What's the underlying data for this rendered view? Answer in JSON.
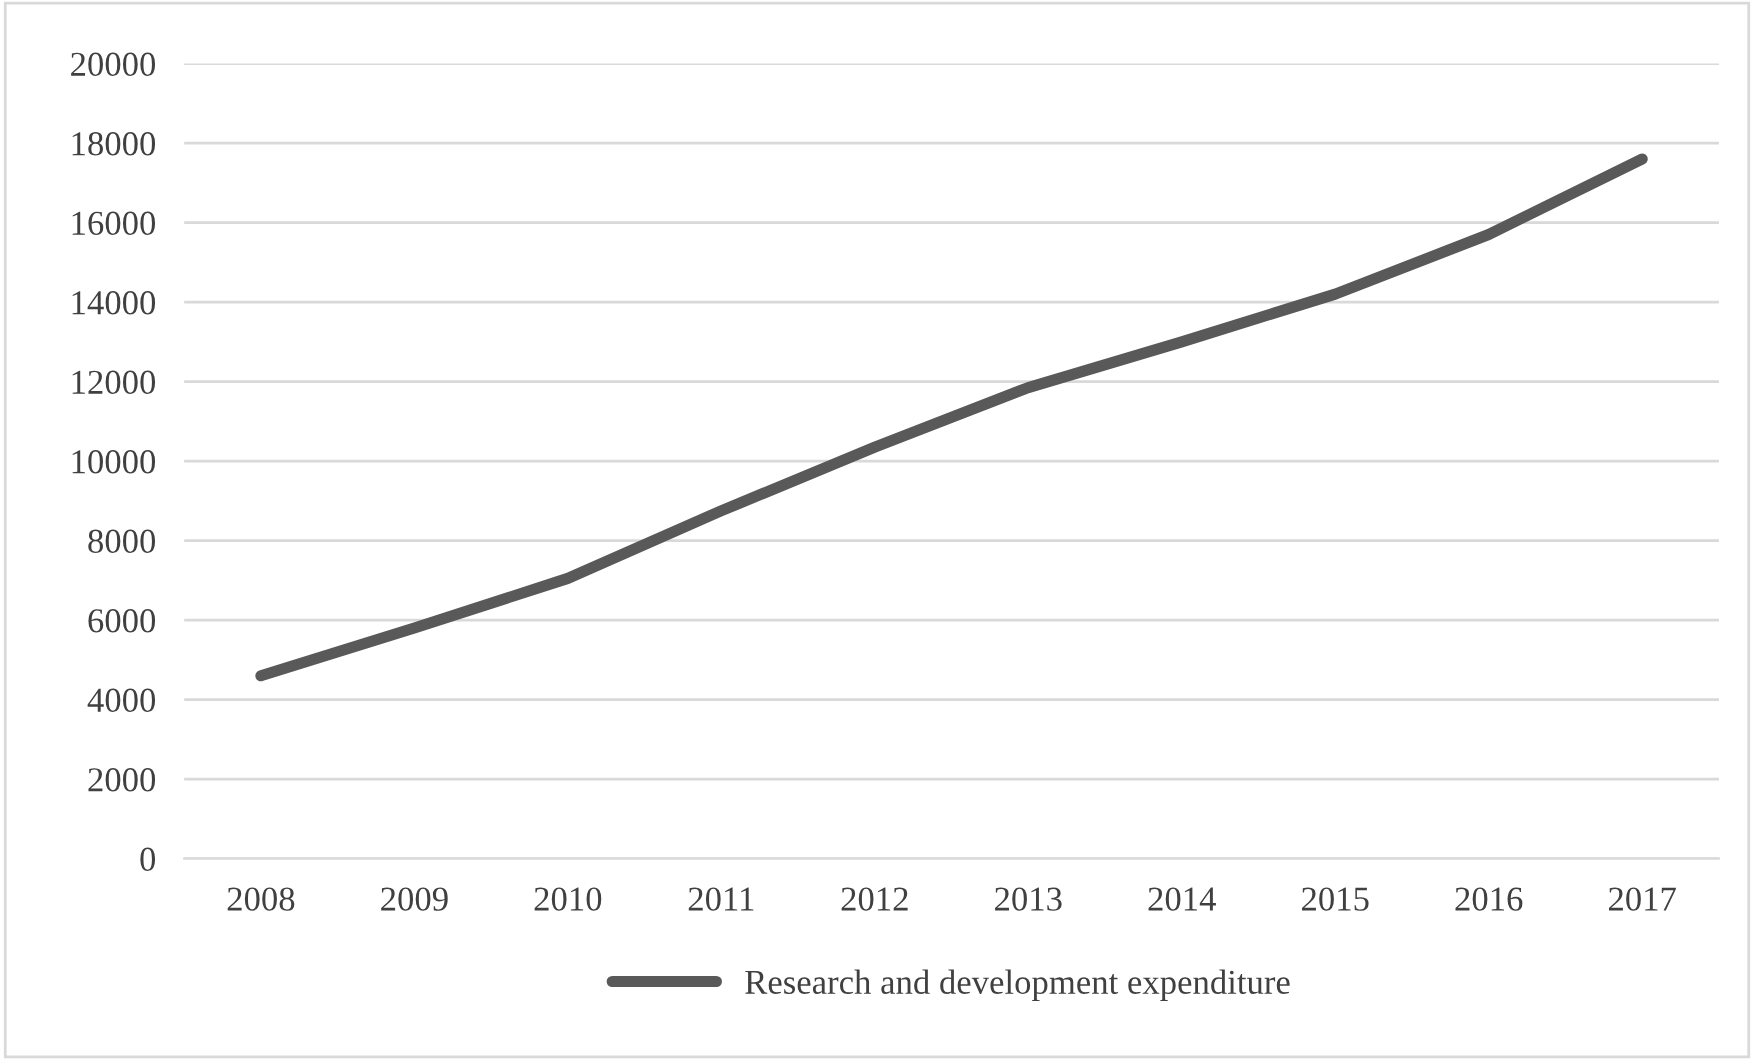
{
  "chart_data": {
    "type": "line",
    "categories": [
      "2008",
      "2009",
      "2010",
      "2011",
      "2012",
      "2013",
      "2014",
      "2015",
      "2016",
      "2017"
    ],
    "series": [
      {
        "name": "Research and development expenditure",
        "color": "#595959",
        "values": [
          4600,
          5800,
          7050,
          8750,
          10350,
          11850,
          13000,
          14200,
          15700,
          17600
        ]
      }
    ],
    "ylim": [
      0,
      20000
    ],
    "yticks": [
      0,
      2000,
      4000,
      6000,
      8000,
      10000,
      12000,
      14000,
      16000,
      18000,
      20000
    ],
    "grid": "y",
    "legend": "bottom",
    "marker": "none",
    "line_style": "solid"
  }
}
